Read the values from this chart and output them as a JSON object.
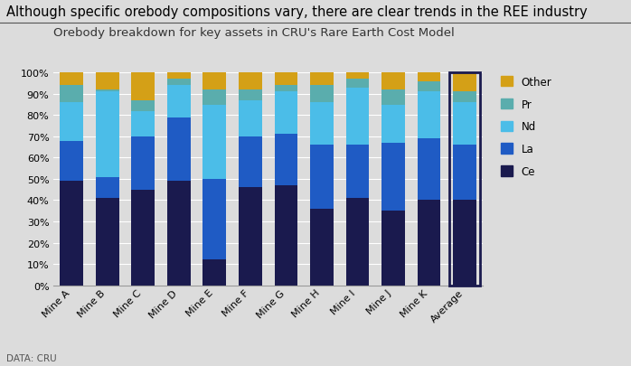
{
  "title": "Although specific orebody compositions vary, there are clear trends in the REE industry",
  "subtitle": "Orebody breakdown for key assets in CRU's Rare Earth Cost Model",
  "categories": [
    "Mine A",
    "Mine B",
    "Mine C",
    "Mine D",
    "Mine E",
    "Mine F",
    "Mine G",
    "Mine H",
    "Mine I",
    "Mine J",
    "Mine K",
    "Average"
  ],
  "series": {
    "Ce": [
      49,
      41,
      45,
      49,
      12,
      46,
      47,
      36,
      41,
      35,
      40,
      40
    ],
    "La": [
      19,
      10,
      25,
      30,
      38,
      24,
      24,
      30,
      25,
      32,
      29,
      26
    ],
    "Nd": [
      18,
      40,
      12,
      15,
      35,
      17,
      20,
      20,
      27,
      18,
      22,
      20
    ],
    "Pr": [
      8,
      1,
      5,
      3,
      7,
      5,
      3,
      8,
      4,
      7,
      5,
      5
    ],
    "Other": [
      6,
      8,
      13,
      3,
      8,
      8,
      6,
      6,
      3,
      8,
      4,
      9
    ]
  },
  "colors": {
    "Ce": "#1a1a4e",
    "La": "#1f5bc4",
    "Nd": "#4bbde8",
    "Pr": "#5aadad",
    "Other": "#d4a017"
  },
  "legend_order": [
    "Other",
    "Pr",
    "Nd",
    "La",
    "Ce"
  ],
  "ylim": [
    0,
    100
  ],
  "background_color": "#dcdcdc",
  "plot_background": "#dcdcdc",
  "footer": "DATA: CRU",
  "title_fontsize": 10.5,
  "subtitle_fontsize": 9.5,
  "average_box_color": "#1a1a4e"
}
